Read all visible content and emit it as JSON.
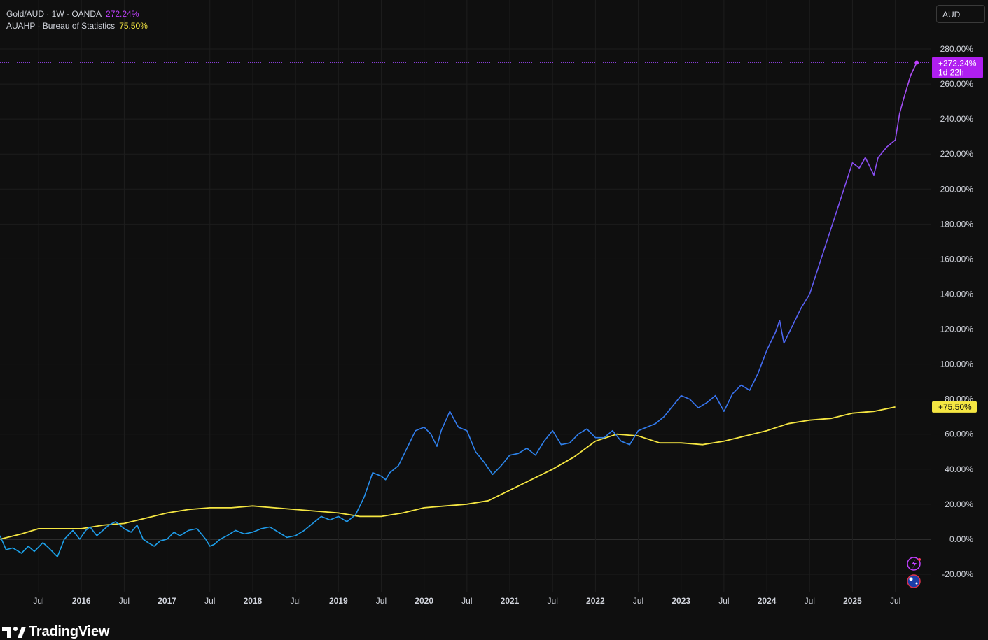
{
  "legend": {
    "series1_label": "Gold/AUD · 1W · OANDA",
    "series1_value": "272.24%",
    "series2_label": "AUAHP · Bureau of Statistics",
    "series2_value": "75.50%"
  },
  "currency_button": "AUD",
  "footer": {
    "logo_text": "TradingView"
  },
  "colors": {
    "gold": "#7b2ff7",
    "gold_end": "#a855f7",
    "housing": "#f5e642",
    "background": "#0f0f0f",
    "grid": "#1d1d1d",
    "zero_line": "#5d5d5d"
  },
  "chart_data": {
    "type": "line",
    "y_unit": "%",
    "ylim": [
      -30,
      290
    ],
    "y_ticks": [
      "-20.00%",
      "0.00%",
      "20.00%",
      "40.00%",
      "60.00%",
      "80.00%",
      "100.00%",
      "120.00%",
      "140.00%",
      "160.00%",
      "180.00%",
      "200.00%",
      "220.00%",
      "240.00%",
      "260.00%",
      "280.00%"
    ],
    "x_ticks": [
      "Jul",
      "2016",
      "Jul",
      "2017",
      "Jul",
      "2018",
      "Jul",
      "2019",
      "Jul",
      "2020",
      "Jul",
      "2021",
      "Jul",
      "2022",
      "Jul",
      "2023",
      "Jul",
      "2024",
      "Jul",
      "2025",
      "Jul"
    ],
    "x_tick_positions": [
      2015.5,
      2016.0,
      2016.5,
      2017.0,
      2017.5,
      2018.0,
      2018.5,
      2019.0,
      2019.5,
      2020.0,
      2020.5,
      2021.0,
      2021.5,
      2022.0,
      2022.5,
      2023.0,
      2023.5,
      2024.0,
      2024.5,
      2025.0,
      2025.5
    ],
    "xlim": [
      2015.05,
      2025.92
    ],
    "grid": true,
    "series": [
      {
        "name": "Gold/AUD",
        "last_label": "+272.24%",
        "countdown": "1d 22h",
        "x": [
          2015.05,
          2015.12,
          2015.2,
          2015.3,
          2015.38,
          2015.45,
          2015.55,
          2015.62,
          2015.72,
          2015.8,
          2015.9,
          2015.98,
          2016.05,
          2016.1,
          2016.18,
          2016.25,
          2016.32,
          2016.4,
          2016.5,
          2016.58,
          2016.65,
          2016.72,
          2016.78,
          2016.85,
          2016.92,
          2017.0,
          2017.08,
          2017.15,
          2017.25,
          2017.35,
          2017.45,
          2017.5,
          2017.55,
          2017.62,
          2017.7,
          2017.8,
          2017.9,
          2018.0,
          2018.1,
          2018.2,
          2018.3,
          2018.4,
          2018.5,
          2018.6,
          2018.7,
          2018.8,
          2018.9,
          2019.0,
          2019.1,
          2019.2,
          2019.3,
          2019.4,
          2019.5,
          2019.55,
          2019.6,
          2019.7,
          2019.8,
          2019.9,
          2020.0,
          2020.08,
          2020.15,
          2020.2,
          2020.3,
          2020.4,
          2020.5,
          2020.6,
          2020.7,
          2020.8,
          2020.9,
          2021.0,
          2021.1,
          2021.2,
          2021.3,
          2021.4,
          2021.5,
          2021.6,
          2021.7,
          2021.8,
          2021.9,
          2022.0,
          2022.1,
          2022.2,
          2022.3,
          2022.4,
          2022.5,
          2022.6,
          2022.7,
          2022.8,
          2022.9,
          2023.0,
          2023.1,
          2023.2,
          2023.3,
          2023.4,
          2023.5,
          2023.6,
          2023.7,
          2023.8,
          2023.9,
          2024.0,
          2024.1,
          2024.15,
          2024.2,
          2024.3,
          2024.4,
          2024.5,
          2024.6,
          2024.7,
          2024.8,
          2024.9,
          2025.0,
          2025.08,
          2025.15,
          2025.25,
          2025.3,
          2025.4,
          2025.5,
          2025.55,
          2025.6,
          2025.68,
          2025.75
        ],
        "values": [
          2,
          -6,
          -5,
          -8,
          -4,
          -7,
          -2,
          -5,
          -10,
          0,
          5,
          0,
          5,
          7,
          2,
          5,
          8,
          10,
          6,
          4,
          8,
          0,
          -2,
          -4,
          -1,
          0,
          4,
          2,
          5,
          6,
          0,
          -4,
          -3,
          0,
          2,
          5,
          3,
          4,
          6,
          7,
          4,
          1,
          2,
          5,
          9,
          13,
          11,
          13,
          10,
          14,
          24,
          38,
          36,
          34,
          38,
          42,
          52,
          62,
          64,
          60,
          53,
          62,
          73,
          64,
          62,
          50,
          44,
          37,
          42,
          48,
          49,
          52,
          48,
          56,
          62,
          54,
          55,
          60,
          63,
          58,
          58,
          62,
          56,
          54,
          62,
          64,
          66,
          70,
          76,
          82,
          80,
          75,
          78,
          82,
          73,
          83,
          88,
          85,
          95,
          108,
          118,
          125,
          112,
          122,
          132,
          140,
          155,
          170,
          185,
          200,
          215,
          212,
          218,
          208,
          218,
          224,
          228,
          243,
          252,
          265,
          272.24
        ]
      },
      {
        "name": "AUAHP",
        "last_label": "+75.50%",
        "x": [
          2015.05,
          2015.3,
          2015.5,
          2015.75,
          2016.0,
          2016.25,
          2016.5,
          2016.75,
          2017.0,
          2017.25,
          2017.5,
          2017.75,
          2018.0,
          2018.25,
          2018.5,
          2018.75,
          2019.0,
          2019.25,
          2019.5,
          2019.75,
          2020.0,
          2020.25,
          2020.5,
          2020.75,
          2021.0,
          2021.25,
          2021.5,
          2021.75,
          2022.0,
          2022.25,
          2022.5,
          2022.75,
          2023.0,
          2023.25,
          2023.5,
          2023.75,
          2024.0,
          2024.25,
          2024.5,
          2024.75,
          2025.0,
          2025.25,
          2025.5
        ],
        "values": [
          0,
          3,
          6,
          6,
          6,
          8,
          9,
          12,
          15,
          17,
          18,
          18,
          19,
          18,
          17,
          16,
          15,
          13,
          13,
          15,
          18,
          19,
          20,
          22,
          28,
          34,
          40,
          47,
          56,
          60,
          59,
          55,
          55,
          54,
          56,
          59,
          62,
          66,
          68,
          69,
          72,
          73,
          75.5
        ]
      }
    ]
  }
}
